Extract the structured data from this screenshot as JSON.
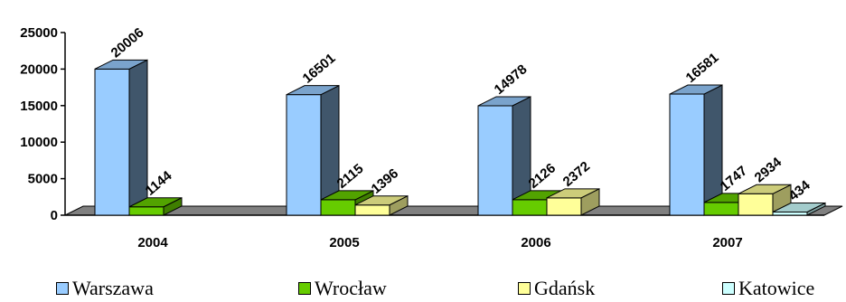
{
  "chart_data": {
    "type": "bar",
    "style": "3d-clustered-column",
    "categories": [
      "2004",
      "2005",
      "2006",
      "2007"
    ],
    "series": [
      {
        "name": "Warszawa",
        "color": "#99CCFF",
        "values": [
          20006,
          16501,
          14978,
          16581
        ]
      },
      {
        "name": "Wrocław",
        "color": "#66CC00",
        "values": [
          1144,
          2115,
          2126,
          1747
        ]
      },
      {
        "name": "Gdańsk",
        "color": "#FFFF99",
        "values": [
          null,
          1396,
          2372,
          2934
        ]
      },
      {
        "name": "Katowice",
        "color": "#CCFFFF",
        "values": [
          null,
          null,
          null,
          434
        ]
      }
    ],
    "data_labels": [
      [
        "20006",
        "16501",
        "14978",
        "16581"
      ],
      [
        "1144",
        "2115",
        "2126",
        "1747"
      ],
      [
        "",
        "1396",
        "2372",
        "2934"
      ],
      [
        "",
        "",
        "",
        "434"
      ]
    ],
    "y_ticks": [
      0,
      5000,
      10000,
      15000,
      20000,
      25000
    ],
    "y_tick_labels": [
      "0",
      "5000",
      "10000",
      "15000",
      "20000",
      "25000"
    ],
    "ylim": [
      0,
      25000
    ],
    "grid": false,
    "legend_position": "bottom",
    "floor_color": "#808080"
  }
}
